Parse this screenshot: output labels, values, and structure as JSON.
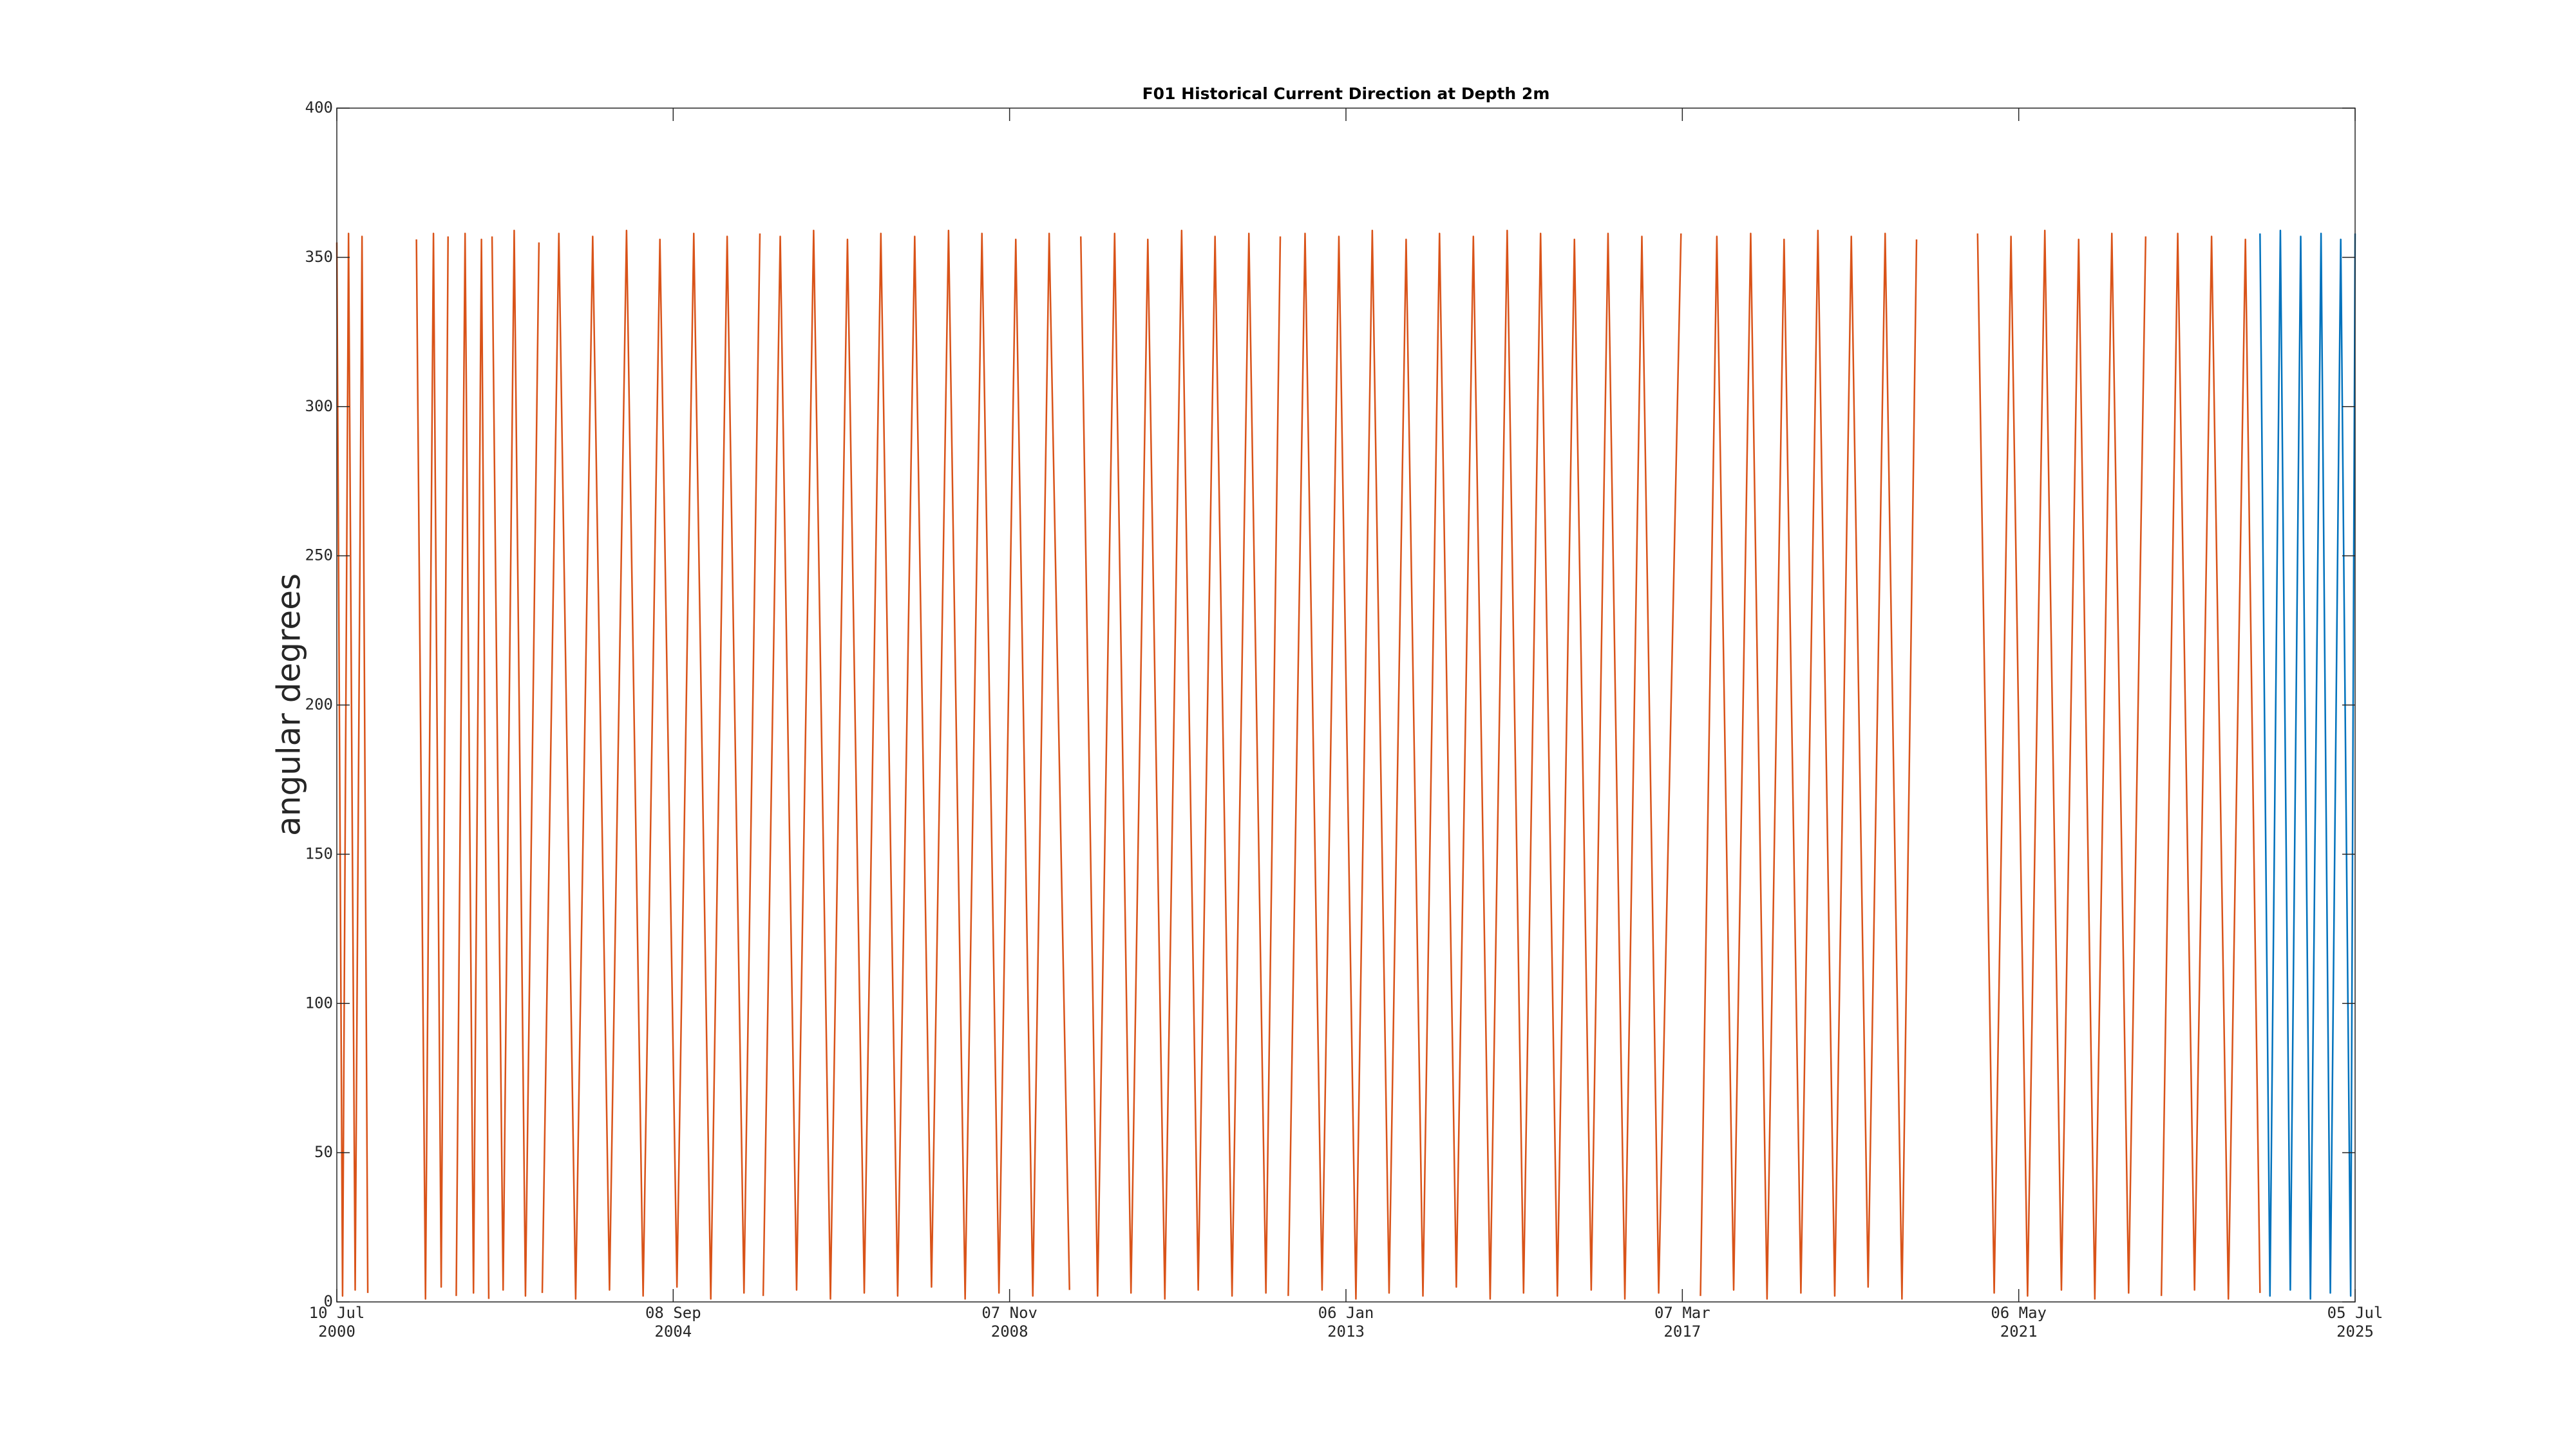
{
  "chart_data": {
    "type": "line",
    "title": "F01 Historical Current Direction at Depth 2m",
    "ylabel": "angular degrees",
    "xlim": [
      "2000-07-10",
      "2025-07-05"
    ],
    "xticks": [
      {
        "value": "2000-07-10",
        "label": [
          "10 Jul",
          "2000"
        ]
      },
      {
        "value": "2004-09-08",
        "label": [
          "08 Sep",
          "2004"
        ]
      },
      {
        "value": "2008-11-07",
        "label": [
          "07 Nov",
          "2008"
        ]
      },
      {
        "value": "2013-01-06",
        "label": [
          "06 Jan",
          "2013"
        ]
      },
      {
        "value": "2017-03-07",
        "label": [
          "07 Mar",
          "2017"
        ]
      },
      {
        "value": "2021-05-06",
        "label": [
          "06 May",
          "2021"
        ]
      },
      {
        "value": "2025-07-05",
        "label": [
          "05 Jul",
          "2025"
        ]
      }
    ],
    "ylim": [
      0,
      400
    ],
    "yticks": [
      0,
      50,
      100,
      150,
      200,
      250,
      300,
      350,
      400
    ],
    "grid": false,
    "box": true,
    "series": [
      {
        "color": "#D95319",
        "x": [
          "2000-07-10",
          "2000-08-05",
          "2000-09-01",
          "2000-10-01",
          "2000-11-01",
          "2000-11-27",
          "2001-03-01",
          "2001-07-05",
          "2001-08-15",
          "2001-09-20",
          "2001-10-25",
          "2001-11-25",
          "2001-12-15",
          "2002-01-01",
          "2002-02-10",
          "2002-03-20",
          "2002-04-25",
          "2002-05-28",
          "2002-06-05",
          "2002-06-12",
          "2002-08-01",
          "2002-09-20",
          "2002-11-10",
          "2003-01-10",
          "2003-01-18",
          "2003-01-25",
          "2003-04-10",
          "2003-06-25",
          "2003-09-10",
          "2003-11-25",
          "2004-02-10",
          "2004-04-25",
          "2004-07-10",
          "2004-09-25",
          "2004-12-10",
          "2005-02-25",
          "2005-05-10",
          "2005-07-25",
          "2005-10-05",
          "2005-10-12",
          "2005-10-20",
          "2006-01-05",
          "2006-03-20",
          "2006-06-05",
          "2006-08-20",
          "2006-11-05",
          "2007-01-20",
          "2007-04-05",
          "2007-06-20",
          "2007-09-05",
          "2007-11-20",
          "2008-02-05",
          "2008-04-20",
          "2008-07-05",
          "2008-09-20",
          "2008-12-05",
          "2009-02-20",
          "2009-05-05",
          "2009-08-05",
          "2009-08-25",
          "2009-09-25",
          "2009-12-10",
          "2010-02-25",
          "2010-05-10",
          "2010-07-25",
          "2010-10-10",
          "2010-12-25",
          "2011-03-10",
          "2011-05-25",
          "2011-08-10",
          "2011-10-25",
          "2012-01-10",
          "2012-03-15",
          "2012-03-30",
          "2012-04-20",
          "2012-07-05",
          "2012-09-20",
          "2012-12-05",
          "2013-02-20",
          "2013-05-05",
          "2013-07-20",
          "2013-10-05",
          "2013-12-20",
          "2014-03-05",
          "2014-05-20",
          "2014-08-05",
          "2014-10-20",
          "2015-01-05",
          "2015-03-20",
          "2015-06-05",
          "2015-08-20",
          "2015-11-05",
          "2016-01-20",
          "2016-04-05",
          "2016-06-20",
          "2016-09-05",
          "2016-11-20",
          "2017-03-01",
          "2017-03-20",
          "2017-05-28",
          "2017-08-10",
          "2017-10-25",
          "2018-01-10",
          "2018-03-25",
          "2018-06-10",
          "2018-08-25",
          "2018-11-10",
          "2019-01-25",
          "2019-04-10",
          "2019-06-25",
          "2019-09-10",
          "2019-11-25",
          "2020-01-30",
          "2020-06-01",
          "2020-11-01",
          "2021-01-15",
          "2021-04-01",
          "2021-06-15",
          "2021-09-01",
          "2021-11-15",
          "2022-02-01",
          "2022-04-15",
          "2022-07-01",
          "2022-09-15",
          "2022-12-01",
          "2023-01-05",
          "2023-02-10",
          "2023-04-25",
          "2023-07-10",
          "2023-09-25",
          "2023-12-10",
          "2024-02-25",
          "2024-05-01"
        ],
        "values": [
          355,
          2,
          358,
          4,
          357,
          3,
          null,
          356,
          1,
          358,
          5,
          357,
          null,
          2,
          358,
          3,
          356,
          1,
          null,
          357,
          4,
          359,
          2,
          355,
          null,
          3,
          358,
          1,
          357,
          4,
          359,
          2,
          356,
          5,
          358,
          1,
          357,
          3,
          358,
          null,
          2,
          357,
          4,
          359,
          1,
          356,
          3,
          358,
          2,
          357,
          5,
          359,
          1,
          358,
          3,
          356,
          2,
          358,
          4,
          null,
          357,
          2,
          358,
          3,
          356,
          1,
          359,
          4,
          357,
          2,
          358,
          3,
          357,
          null,
          2,
          358,
          4,
          357,
          1,
          359,
          3,
          356,
          2,
          358,
          5,
          357,
          1,
          359,
          3,
          358,
          2,
          356,
          4,
          358,
          1,
          357,
          3,
          358,
          null,
          2,
          357,
          4,
          358,
          1,
          356,
          3,
          359,
          2,
          357,
          5,
          358,
          1,
          356,
          null,
          358,
          3,
          357,
          2,
          359,
          4,
          356,
          1,
          358,
          3,
          357,
          null,
          2,
          358,
          4,
          357,
          1,
          356,
          3
        ]
      },
      {
        "color": "#0072BD",
        "x": [
          "2024-05-01",
          "2024-06-15",
          "2024-08-01",
          "2024-09-15",
          "2024-11-01",
          "2024-12-15",
          "2025-02-01",
          "2025-03-15",
          "2025-05-01",
          "2025-06-15",
          "2025-07-05"
        ],
        "values": [
          358,
          2,
          359,
          4,
          357,
          1,
          358,
          3,
          356,
          2,
          358
        ]
      }
    ]
  }
}
